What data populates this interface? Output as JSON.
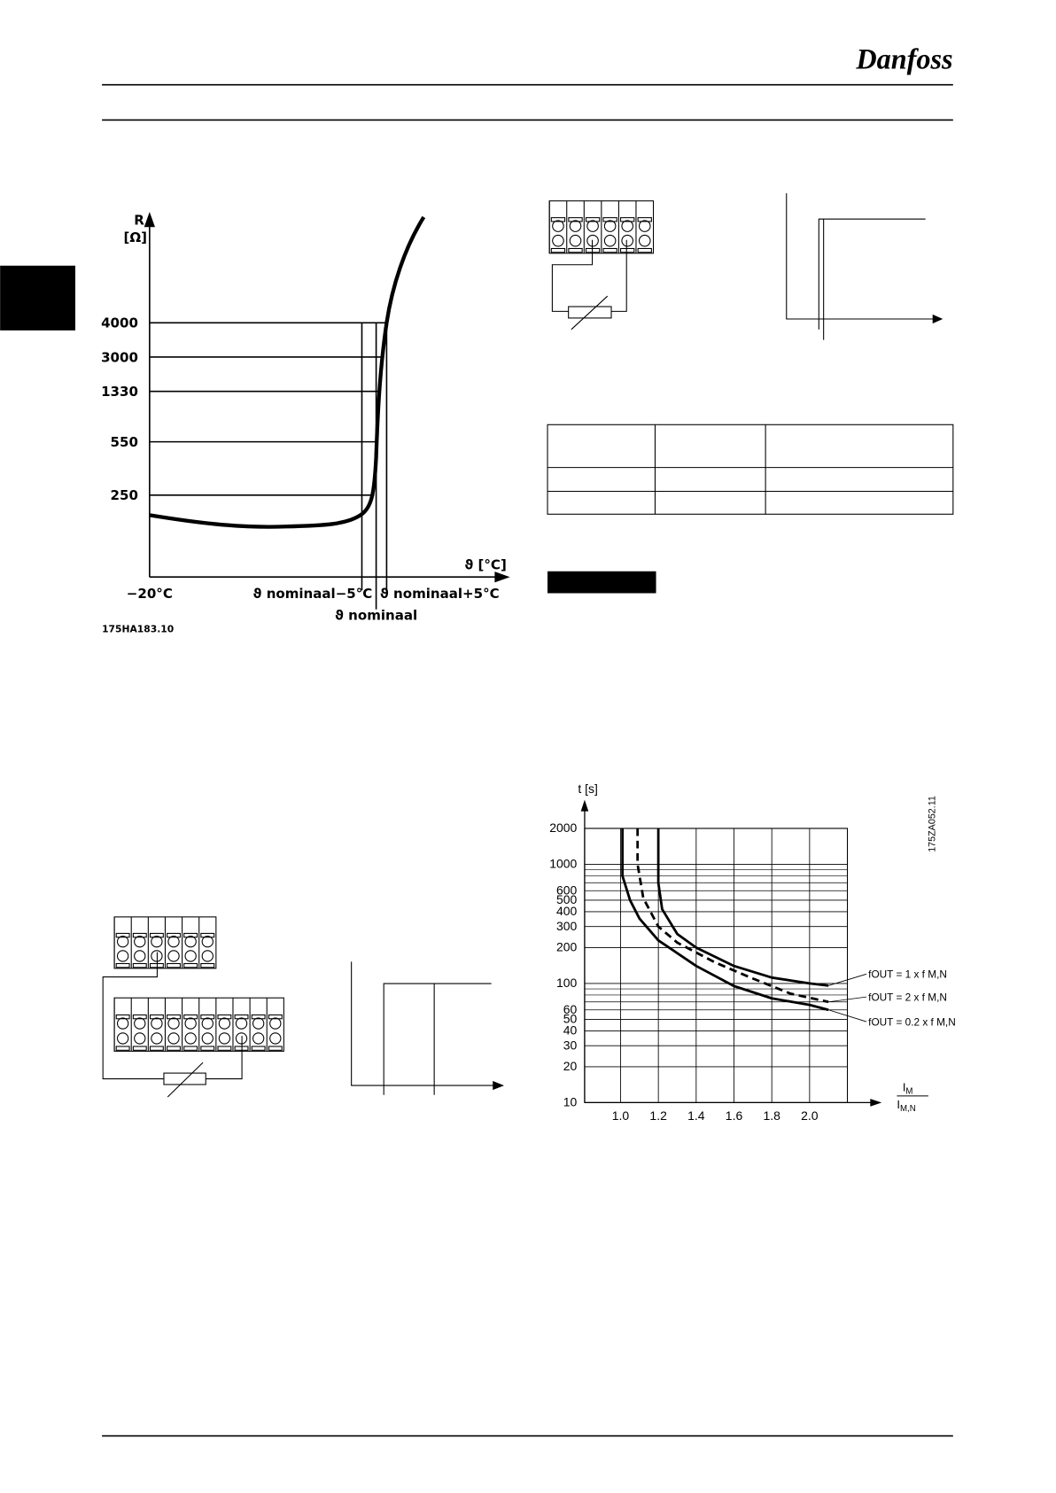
{
  "header": {
    "logo": "Danfoss"
  },
  "figures": {
    "ptc": {
      "y_axis_label": "R",
      "y_axis_unit": "[Ω]",
      "y_labels": [
        "4000",
        "3000",
        "1330",
        "550",
        "250"
      ],
      "x_axis_label": "ϑ [°C]",
      "x_labels": [
        "−20°C",
        "ϑ nominaal−5°C",
        "ϑ nominaal+5°C",
        "ϑ nominaal"
      ],
      "code": "175HA183.10"
    }
  },
  "chart_data": {
    "type": "line",
    "y_label": "t [s]",
    "x_label": {
      "top": "I",
      "top_sub": "M",
      "bottom": "I",
      "bottom_sub": "M,N"
    },
    "code": "175ZA052.11",
    "yscale": "log",
    "ylim": [
      10,
      2000
    ],
    "yticks": [
      10,
      20,
      30,
      40,
      50,
      60,
      100,
      200,
      300,
      400,
      500,
      600,
      1000,
      2000
    ],
    "minor_yticks": [
      70,
      80,
      90,
      700,
      800,
      900
    ],
    "xlim": [
      0.81,
      2.2
    ],
    "xticks": [
      {
        "value": 1,
        "label": "1.0"
      },
      1.2,
      1.4,
      1.6,
      1.8,
      {
        "value": 2,
        "label": "2.0"
      }
    ],
    "grid": true,
    "series": [
      {
        "name": "fOUT = 1 x f M,N",
        "color": "#000",
        "dash": false,
        "x": [
          1.2,
          1.2,
          1.22,
          1.3,
          1.4,
          1.6,
          1.8,
          2.0,
          2.1
        ],
        "values": [
          2000,
          700,
          420,
          260,
          200,
          140,
          112,
          100,
          96
        ]
      },
      {
        "name": "fOUT = 2 x f M,N",
        "color": "#000",
        "dash": true,
        "x": [
          1.09,
          1.09,
          1.12,
          1.2,
          1.3,
          1.5,
          1.7,
          1.9,
          2.1
        ],
        "values": [
          2000,
          1000,
          520,
          300,
          220,
          150,
          110,
          82,
          70
        ]
      },
      {
        "name": "fOUT = 0.2 x f M,N",
        "color": "#000",
        "dash": false,
        "x": [
          1.01,
          1.01,
          1.05,
          1.1,
          1.2,
          1.4,
          1.6,
          1.8,
          2.0,
          2.1
        ],
        "values": [
          2000,
          800,
          500,
          350,
          230,
          140,
          95,
          75,
          66,
          60
        ]
      }
    ]
  }
}
